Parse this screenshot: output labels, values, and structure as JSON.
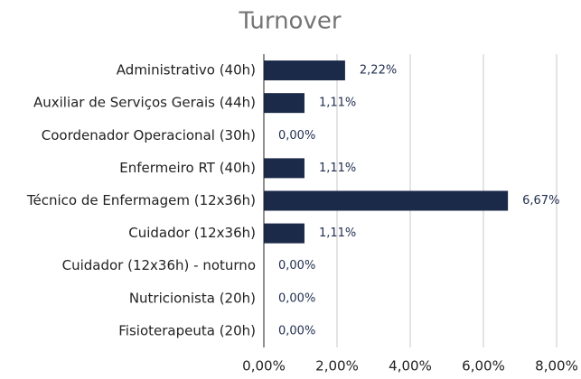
{
  "chart_data": {
    "type": "barh",
    "title": "Turnover",
    "categories": [
      "Administrativo (40h)",
      "Auxiliar de Serviços Gerais (44h)",
      "Coordenador Operacional (30h)",
      "Enfermeiro RT (40h)",
      "Técnico de Enfermagem (12x36h)",
      "Cuidador (12x36h)",
      "Cuidador (12x36h) - noturno",
      "Nutricionista (20h)",
      "Fisioterapeuta (20h)"
    ],
    "values": [
      2.22,
      1.11,
      0,
      1.11,
      6.67,
      1.11,
      0,
      0,
      0
    ],
    "value_labels": [
      "2,22%",
      "1,11%",
      "0,00%",
      "1,11%",
      "6,67%",
      "1,11%",
      "0,00%",
      "0,00%",
      "0,00%"
    ],
    "color": "#1c2a4a",
    "xlim": [
      0,
      8
    ],
    "xticks": [
      {
        "value": 0,
        "label": "0,00%"
      },
      {
        "value": 2,
        "label": "2,00%"
      },
      {
        "value": 4,
        "label": "4,00%"
      },
      {
        "value": 6,
        "label": "6,00%"
      },
      {
        "value": 8,
        "label": "8,00%"
      }
    ],
    "grid": true
  }
}
